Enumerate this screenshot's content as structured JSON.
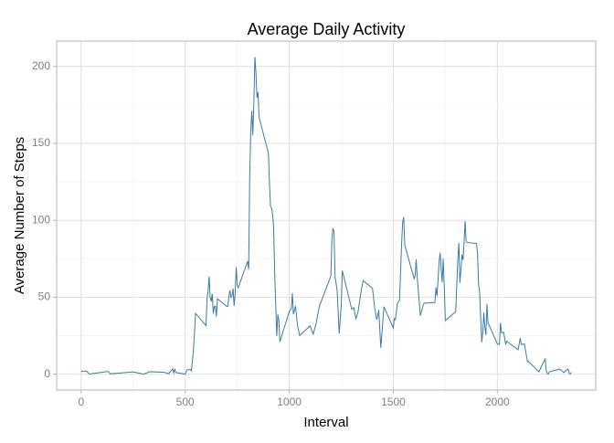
{
  "chart_data": {
    "type": "line",
    "title": "Average Daily Activity",
    "x_label": "Interval",
    "y_label": "Average Number of Steps",
    "xlim": [
      -117.75,
      2472.75
    ],
    "ylim": [
      -10.31,
      216.48
    ],
    "xticks": [
      0,
      500,
      1000,
      1500,
      2000
    ],
    "yticks": [
      0,
      50,
      100,
      150,
      200
    ],
    "grid": true,
    "series": [
      {
        "name": "steps",
        "color": "#3b7aa6",
        "x": [
          0,
          25,
          40,
          50,
          130,
          140,
          250,
          300,
          330,
          400,
          420,
          440,
          445,
          450,
          455,
          500,
          505,
          510,
          525,
          530,
          540,
          550,
          600,
          605,
          610,
          615,
          620,
          625,
          630,
          635,
          640,
          645,
          650,
          655,
          700,
          705,
          710,
          715,
          720,
          725,
          730,
          735,
          740,
          745,
          750,
          755,
          800,
          805,
          810,
          815,
          820,
          825,
          830,
          835,
          840,
          845,
          850,
          855,
          900,
          905,
          910,
          915,
          920,
          925,
          930,
          935,
          940,
          945,
          950,
          955,
          1000,
          1010,
          1015,
          1020,
          1030,
          1040,
          1050,
          1100,
          1115,
          1130,
          1145,
          1150,
          1200,
          1205,
          1210,
          1215,
          1220,
          1230,
          1240,
          1250,
          1255,
          1300,
          1310,
          1320,
          1330,
          1345,
          1355,
          1400,
          1410,
          1420,
          1425,
          1430,
          1440,
          1445,
          1455,
          1500,
          1505,
          1510,
          1520,
          1530,
          1540,
          1545,
          1550,
          1555,
          1600,
          1605,
          1610,
          1615,
          1630,
          1645,
          1650,
          1700,
          1705,
          1710,
          1715,
          1720,
          1725,
          1730,
          1735,
          1740,
          1745,
          1750,
          1800,
          1810,
          1815,
          1820,
          1825,
          1830,
          1835,
          1840,
          1845,
          1850,
          1855,
          1900,
          1905,
          1910,
          1915,
          1920,
          1925,
          1930,
          1935,
          1940,
          1945,
          1950,
          1955,
          2000,
          2010,
          2015,
          2020,
          2030,
          2040,
          2045,
          2100,
          2110,
          2115,
          2130,
          2145,
          2150,
          2200,
          2210,
          2230,
          2235,
          2240,
          2245,
          2250,
          2300,
          2320,
          2330,
          2340,
          2345,
          2350,
          2355
        ],
        "values": [
          1.7,
          2.1,
          0,
          0.3,
          1.8,
          0.2,
          1.5,
          0,
          1.6,
          1.2,
          0.3,
          3.5,
          0.8,
          3.1,
          1.1,
          0,
          1.6,
          3.0,
          3.0,
          2.1,
          16.0,
          39.5,
          31.5,
          49.3,
          53.8,
          63.5,
          50.0,
          47.1,
          52.2,
          39.3,
          44.0,
          44.2,
          37.4,
          49.0,
          44.0,
          44.2,
          50.5,
          54.5,
          49.9,
          50.9,
          55.7,
          44.3,
          52.3,
          69.5,
          57.8,
          56.2,
          73.4,
          68.2,
          129.4,
          157.5,
          171.2,
          155.4,
          177.3,
          206.2,
          195.9,
          179.6,
          183.4,
          167.0,
          143.5,
          124.0,
          109.1,
          108.1,
          103.7,
          96.0,
          66.2,
          45.2,
          24.8,
          38.8,
          35.0,
          21.1,
          40.6,
          42.4,
          52.7,
          38.9,
          44.3,
          31.5,
          25.1,
          31.4,
          26.0,
          33.4,
          44.6,
          46.0,
          63.9,
          87.6,
          94.8,
          92.8,
          63.4,
          54.5,
          26.5,
          45.0,
          67.3,
          42.3,
          43.3,
          36.1,
          40.0,
          53.5,
          60.8,
          55.8,
          43.6,
          35.5,
          37.6,
          41.8,
          17.1,
          26.1,
          43.8,
          30.0,
          36.1,
          35.5,
          46.0,
          48.1,
          84.6,
          98.7,
          102.1,
          84.0,
          62.1,
          64.1,
          74.5,
          63.2,
          38.0,
          45.5,
          46.2,
          46.6,
          56.3,
          50.7,
          61.2,
          72.7,
          78.9,
          68.9,
          59.7,
          75.1,
          56.5,
          34.8,
          40.7,
          74.7,
          85.3,
          59.3,
          67.8,
          77.7,
          74.2,
          85.3,
          99.5,
          86.6,
          85.6,
          84.9,
          77.8,
          58.0,
          53.4,
          36.3,
          20.7,
          27.4,
          40.0,
          30.2,
          25.5,
          45.7,
          33.5,
          19.6,
          19.3,
          33.3,
          26.8,
          27.3,
          19.6,
          21.3,
          15.9,
          23.5,
          19.2,
          19.6,
          8.0,
          8.2,
          1.5,
          4.6,
          9.8,
          2.2,
          0.3,
          0.1,
          1.6,
          3.3,
          1.0,
          2.6,
          3.3,
          0.6,
          0.2,
          1.1
        ]
      }
    ]
  }
}
